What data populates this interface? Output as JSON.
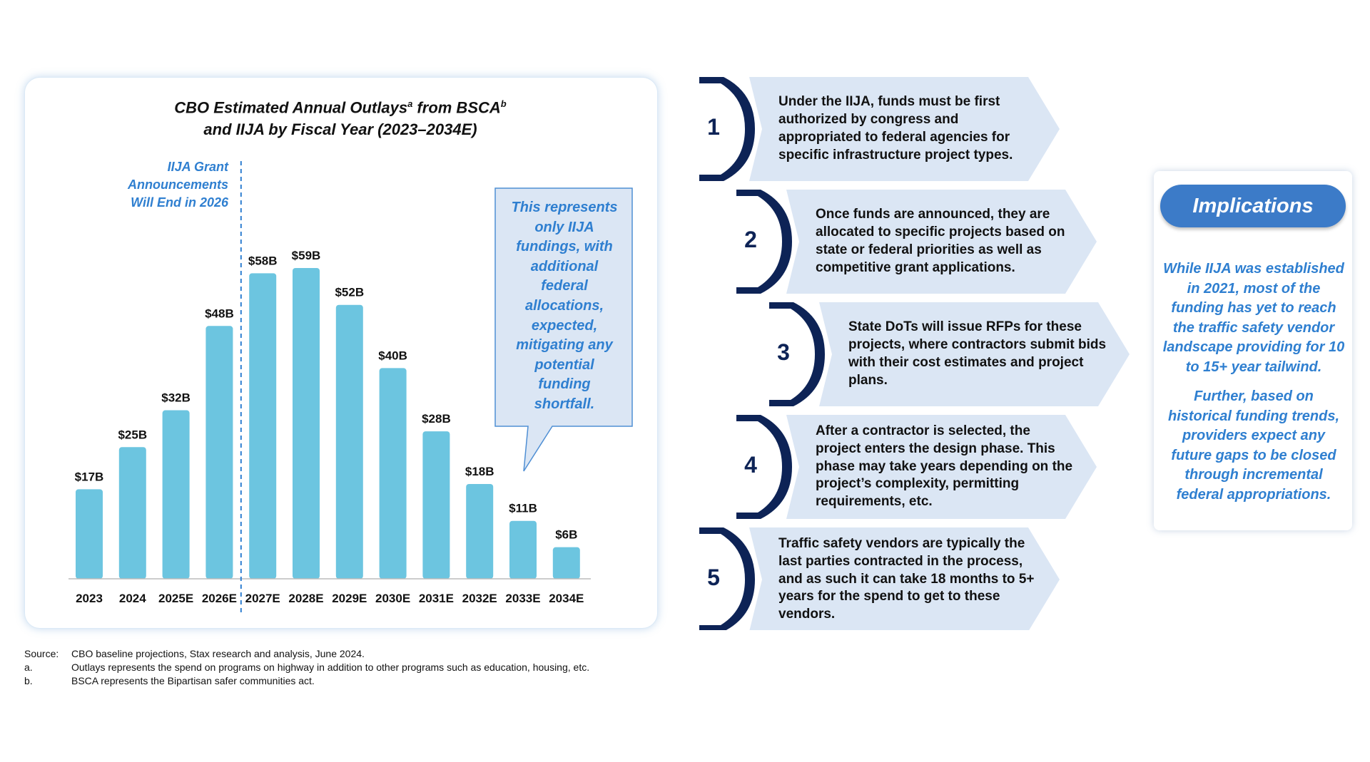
{
  "chart_data": {
    "type": "bar",
    "title": "CBO Estimated Annual Outlays",
    "title_sup_a": "a",
    "title_mid": " from BSCA",
    "title_sup_b": "b",
    "title_line2": "and IIJA by Fiscal Year (2023–2034E)",
    "categories": [
      "2023",
      "2024",
      "2025E",
      "2026E",
      "2027E",
      "2028E",
      "2029E",
      "2030E",
      "2031E",
      "2032E",
      "2033E",
      "2034E"
    ],
    "values": [
      17,
      25,
      32,
      48,
      58,
      59,
      52,
      40,
      28,
      18,
      11,
      6
    ],
    "data_labels": [
      "$17B",
      "$25B",
      "$32B",
      "$48B",
      "$58B",
      "$59B",
      "$52B",
      "$40B",
      "$28B",
      "$18B",
      "$11B",
      "$6B"
    ],
    "ylim": [
      0,
      62
    ],
    "xlabel": "",
    "ylabel": "",
    "grid": false,
    "bar_color": "#6cc5e0",
    "annotation_line_after_category": "2026E",
    "annotation": "IIJA Grant Announcements Will End in 2026",
    "callout": "This represents only IIJA fundings, with additional federal allocations, expected, mitigating any potential funding shortfall."
  },
  "annotation_lines": [
    "IIJA Grant",
    "Announcements",
    "Will End in 2026"
  ],
  "callout_lines": [
    "This represents",
    "only IIJA",
    "fundings, with",
    "additional",
    "federal",
    "allocations,",
    "expected,",
    "mitigating any",
    "potential",
    "funding",
    "shortfall."
  ],
  "footnotes": [
    {
      "key": "Source:",
      "text": "CBO baseline projections, Stax research and analysis, June 2024."
    },
    {
      "key": "a.",
      "text": "Outlays represents the spend on programs on highway in addition to other programs such as education, housing, etc."
    },
    {
      "key": "b.",
      "text": "BSCA represents the Bipartisan safer communities act."
    }
  ],
  "steps": [
    {
      "num": "1",
      "lines": [
        "Under the IIJA, funds must be first",
        "authorized by congress and",
        "appropriated to federal agencies for",
        "specific infrastructure project types."
      ]
    },
    {
      "num": "2",
      "lines": [
        "Once funds are announced, they are",
        "allocated to specific projects based on",
        "state or federal priorities as well as",
        "competitive grant applications."
      ]
    },
    {
      "num": "3",
      "lines": [
        "State DoTs will issue RFPs for these",
        "projects, where contractors submit bids",
        "with their cost estimates and project",
        "plans."
      ]
    },
    {
      "num": "4",
      "lines": [
        "After a contractor is selected, the",
        "project enters the design phase. This",
        "phase may take years depending on the",
        "project’s complexity, permitting",
        "requirements, etc."
      ]
    },
    {
      "num": "5",
      "lines": [
        "Traffic safety vendors are typically the",
        "last parties contracted in the process,",
        "and as such it can take 18 months to 5+",
        "years for the spend to get to these",
        "vendors."
      ]
    }
  ],
  "colors": {
    "navy": "#0d2356",
    "step_fill": "#dbe6f4",
    "accent": "#2f7fd0",
    "pill": "#3c7bc8"
  },
  "implications": {
    "title": "Implications",
    "para1_lines": [
      "While IIJA was established",
      "in 2021, most of the",
      "funding has yet to reach",
      "the traffic safety vendor",
      "landscape providing for 10",
      "to 15+ year tailwind."
    ],
    "para2_lines": [
      "Further, based on",
      "historical funding trends,",
      "providers expect any",
      "future gaps to be closed",
      "through incremental",
      "federal appropriations."
    ]
  }
}
